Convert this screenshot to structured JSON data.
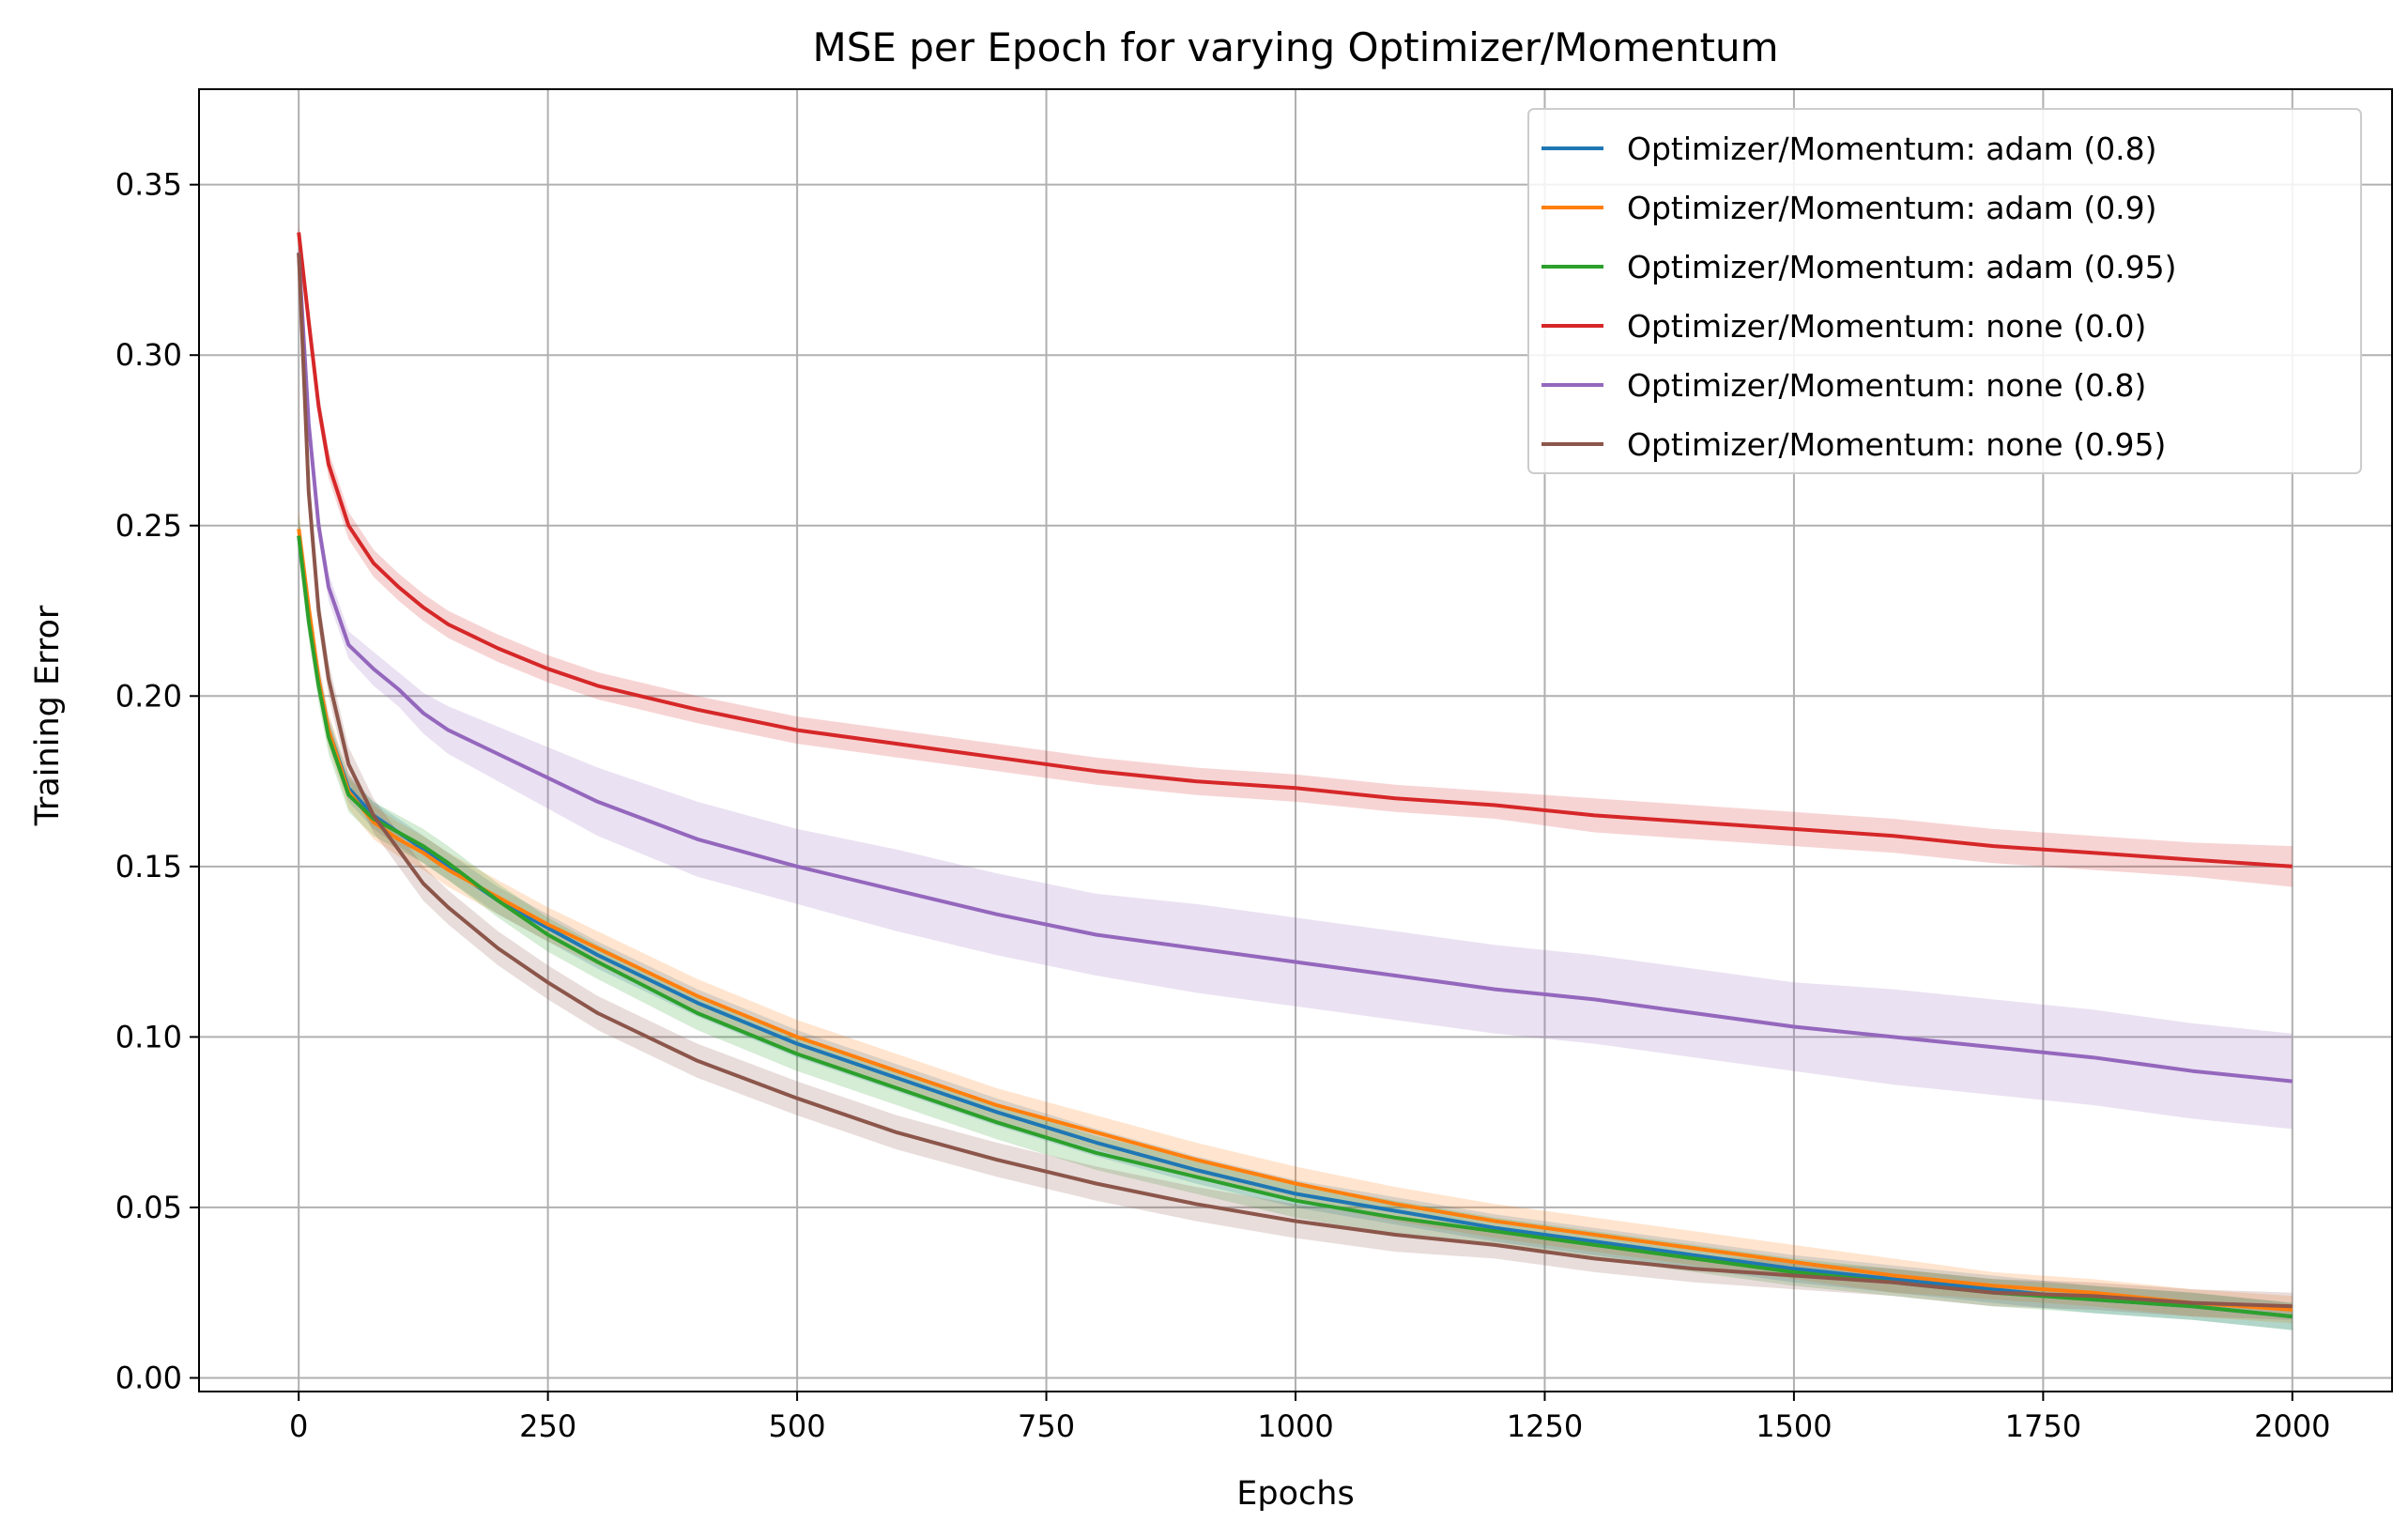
{
  "chart_data": {
    "type": "line",
    "title": "MSE per Epoch for varying Optimizer/Momentum",
    "xlabel": "Epochs",
    "ylabel": "Training Error",
    "xlim": [
      -100,
      2100
    ],
    "ylim": [
      -0.004,
      0.378
    ],
    "xticks": [
      0,
      250,
      500,
      750,
      1000,
      1250,
      1500,
      1750,
      2000
    ],
    "xtick_labels": [
      "0",
      "250",
      "500",
      "750",
      "1000",
      "1250",
      "1500",
      "1750",
      "2000"
    ],
    "yticks": [
      0.0,
      0.05,
      0.1,
      0.15,
      0.2,
      0.25,
      0.3,
      0.35
    ],
    "ytick_labels": [
      "0.00",
      "0.05",
      "0.10",
      "0.15",
      "0.20",
      "0.25",
      "0.30",
      "0.35"
    ],
    "grid": true,
    "legend_position": "top-right",
    "x": [
      0,
      10,
      20,
      30,
      50,
      75,
      100,
      125,
      150,
      200,
      250,
      300,
      400,
      500,
      600,
      700,
      800,
      900,
      1000,
      1100,
      1200,
      1300,
      1400,
      1500,
      1600,
      1700,
      1800,
      1900,
      2000
    ],
    "series": [
      {
        "name": "Optimizer/Momentum: adam (0.8)",
        "color": "#1f77b4",
        "values": [
          0.247,
          0.225,
          0.205,
          0.19,
          0.173,
          0.165,
          0.16,
          0.155,
          0.15,
          0.14,
          0.132,
          0.124,
          0.11,
          0.098,
          0.088,
          0.078,
          0.069,
          0.061,
          0.054,
          0.049,
          0.044,
          0.04,
          0.036,
          0.032,
          0.029,
          0.026,
          0.023,
          0.021,
          0.018
        ],
        "band": [
          0.006,
          0.004,
          0.004,
          0.004,
          0.004,
          0.004,
          0.004,
          0.004,
          0.004,
          0.004,
          0.004,
          0.004,
          0.004,
          0.004,
          0.004,
          0.004,
          0.004,
          0.004,
          0.004,
          0.004,
          0.004,
          0.004,
          0.004,
          0.004,
          0.004,
          0.004,
          0.004,
          0.004,
          0.004
        ]
      },
      {
        "name": "Optimizer/Momentum: adam (0.9)",
        "color": "#ff7f0e",
        "values": [
          0.249,
          0.226,
          0.205,
          0.19,
          0.172,
          0.163,
          0.158,
          0.154,
          0.149,
          0.141,
          0.133,
          0.126,
          0.112,
          0.1,
          0.09,
          0.08,
          0.072,
          0.064,
          0.057,
          0.051,
          0.046,
          0.042,
          0.038,
          0.034,
          0.03,
          0.027,
          0.025,
          0.022,
          0.02
        ],
        "band": [
          0.006,
          0.005,
          0.005,
          0.005,
          0.005,
          0.005,
          0.005,
          0.005,
          0.005,
          0.005,
          0.005,
          0.005,
          0.005,
          0.005,
          0.005,
          0.005,
          0.005,
          0.005,
          0.005,
          0.005,
          0.005,
          0.005,
          0.005,
          0.005,
          0.005,
          0.004,
          0.004,
          0.004,
          0.004
        ]
      },
      {
        "name": "Optimizer/Momentum: adam (0.95)",
        "color": "#2ca02c",
        "values": [
          0.247,
          0.222,
          0.203,
          0.188,
          0.171,
          0.164,
          0.16,
          0.156,
          0.151,
          0.14,
          0.13,
          0.122,
          0.107,
          0.095,
          0.085,
          0.075,
          0.066,
          0.059,
          0.052,
          0.047,
          0.043,
          0.039,
          0.035,
          0.031,
          0.028,
          0.025,
          0.023,
          0.021,
          0.018
        ],
        "band": [
          0.006,
          0.005,
          0.005,
          0.005,
          0.005,
          0.005,
          0.005,
          0.005,
          0.005,
          0.005,
          0.005,
          0.005,
          0.005,
          0.005,
          0.005,
          0.005,
          0.005,
          0.005,
          0.005,
          0.005,
          0.004,
          0.004,
          0.004,
          0.004,
          0.004,
          0.004,
          0.004,
          0.004,
          0.004
        ]
      },
      {
        "name": "Optimizer/Momentum: none (0.0)",
        "color": "#d62728",
        "values": [
          0.336,
          0.31,
          0.285,
          0.268,
          0.25,
          0.239,
          0.232,
          0.226,
          0.221,
          0.214,
          0.208,
          0.203,
          0.196,
          0.19,
          0.186,
          0.182,
          0.178,
          0.175,
          0.173,
          0.17,
          0.168,
          0.165,
          0.163,
          0.161,
          0.159,
          0.156,
          0.154,
          0.152,
          0.15
        ],
        "band": [
          0.003,
          0.003,
          0.004,
          0.004,
          0.004,
          0.004,
          0.004,
          0.004,
          0.004,
          0.004,
          0.004,
          0.004,
          0.004,
          0.004,
          0.004,
          0.004,
          0.004,
          0.004,
          0.004,
          0.004,
          0.004,
          0.005,
          0.005,
          0.005,
          0.005,
          0.005,
          0.005,
          0.005,
          0.006
        ]
      },
      {
        "name": "Optimizer/Momentum: none (0.8)",
        "color": "#9467bd",
        "values": [
          0.33,
          0.28,
          0.25,
          0.232,
          0.215,
          0.208,
          0.202,
          0.195,
          0.19,
          0.183,
          0.176,
          0.169,
          0.158,
          0.15,
          0.143,
          0.136,
          0.13,
          0.126,
          0.122,
          0.118,
          0.114,
          0.111,
          0.107,
          0.103,
          0.1,
          0.097,
          0.094,
          0.09,
          0.087
        ],
        "band": [
          0.003,
          0.004,
          0.004,
          0.004,
          0.004,
          0.005,
          0.005,
          0.006,
          0.007,
          0.008,
          0.009,
          0.01,
          0.011,
          0.011,
          0.012,
          0.012,
          0.012,
          0.013,
          0.013,
          0.013,
          0.013,
          0.013,
          0.013,
          0.013,
          0.014,
          0.014,
          0.014,
          0.014,
          0.014
        ]
      },
      {
        "name": "Optimizer/Momentum: none (0.95)",
        "color": "#8c564b",
        "values": [
          0.33,
          0.26,
          0.225,
          0.205,
          0.18,
          0.165,
          0.155,
          0.145,
          0.138,
          0.126,
          0.116,
          0.107,
          0.093,
          0.082,
          0.072,
          0.064,
          0.057,
          0.051,
          0.046,
          0.042,
          0.039,
          0.035,
          0.032,
          0.03,
          0.028,
          0.025,
          0.024,
          0.022,
          0.021
        ],
        "band": [
          0.004,
          0.005,
          0.005,
          0.005,
          0.005,
          0.005,
          0.005,
          0.005,
          0.005,
          0.005,
          0.005,
          0.005,
          0.005,
          0.005,
          0.005,
          0.005,
          0.005,
          0.005,
          0.005,
          0.005,
          0.004,
          0.004,
          0.004,
          0.004,
          0.004,
          0.004,
          0.004,
          0.004,
          0.004
        ]
      }
    ]
  }
}
